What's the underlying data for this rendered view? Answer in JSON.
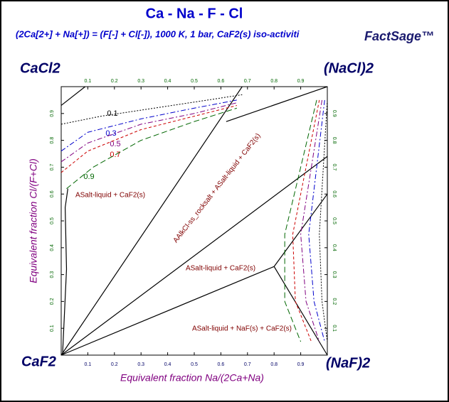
{
  "chart_data": {
    "type": "line",
    "title": "Ca - Na - F - Cl",
    "subtitle": "(2Ca[2+] + Na[+]) = (F[-] + Cl[-]),  1000 K, 1 bar, CaF2(s) iso-activiti",
    "logo": "FactSage™",
    "xlabel": "Equivalent fraction  Na/(2Ca+Na)",
    "ylabel": "Equivalent fraction  Cl/(F+Cl)",
    "corners": [
      "CaCl2",
      "(NaCl)2",
      "CaF2",
      "(NaF)2"
    ],
    "annotations": [
      "ASalt-liquid + CaF2(s)",
      "AAlkCl-ss_rocksalt + ASalt-liquid + CaF2(s)",
      "ASalt-liquid + CaF2(s)",
      "ASalt-liquid + NaF(s) + CaF2(s)"
    ],
    "xlim": [
      0,
      1
    ],
    "ylim": [
      0,
      1
    ],
    "xticks": [
      0.1,
      0.2,
      0.3,
      0.4,
      0.5,
      0.6,
      0.7,
      0.8,
      0.9
    ],
    "yticks": [
      0.1,
      0.2,
      0.3,
      0.4,
      0.5,
      0.6,
      0.7,
      0.8,
      0.9
    ],
    "series": [
      {
        "color": "#000000",
        "dash": "solid",
        "x": [
          0,
          0.68
        ],
        "values": [
          0,
          1
        ]
      },
      {
        "color": "#000000",
        "dash": "solid",
        "x": [
          0,
          0.8,
          1
        ],
        "values": [
          0,
          0.33,
          0
        ]
      },
      {
        "color": "#000000",
        "dash": "solid",
        "x": [
          0,
          1
        ],
        "values": [
          0,
          0.74
        ]
      },
      {
        "color": "#000000",
        "dash": "solid",
        "x": [
          0.8,
          1
        ],
        "values": [
          0.33,
          0.6
        ]
      },
      {
        "color": "#000000",
        "dash": "solid",
        "x": [
          0.005,
          0.02,
          0.015,
          0.025
        ],
        "values": [
          0,
          0.32,
          0.55,
          0.62
        ]
      },
      {
        "color": "#000000",
        "dash": "solid",
        "x": [
          0,
          0.09
        ],
        "values": [
          0.93,
          1
        ]
      },
      {
        "color": "#000000",
        "dash": "solid",
        "x": [
          0.62,
          1
        ],
        "values": [
          0.87,
          1
        ]
      },
      {
        "name": "0.1",
        "color": "#000000",
        "dash": "dotted",
        "x": [
          0,
          0.15,
          0.35,
          0.55,
          0.68,
          null,
          1,
          0.985,
          0.97,
          0.98,
          1
        ],
        "values": [
          0.86,
          0.89,
          0.92,
          0.95,
          0.97,
          null,
          0.95,
          0.7,
          0.45,
          0.2,
          0.05
        ]
      },
      {
        "name": "0.3",
        "color": "#0000cc",
        "dash": "dashdot",
        "x": [
          0,
          0.1,
          0.3,
          0.5,
          0.66,
          null,
          0.99,
          0.96,
          0.93,
          0.95,
          0.99
        ],
        "values": [
          0.76,
          0.83,
          0.88,
          0.92,
          0.95,
          null,
          0.95,
          0.7,
          0.45,
          0.2,
          0.05
        ]
      },
      {
        "name": "0.5",
        "color": "#800080",
        "dash": "dashdot",
        "x": [
          0,
          0.1,
          0.3,
          0.5,
          0.66,
          null,
          0.98,
          0.94,
          0.9,
          0.92,
          0.97
        ],
        "values": [
          0.72,
          0.79,
          0.86,
          0.9,
          0.94,
          null,
          0.95,
          0.7,
          0.45,
          0.2,
          0.05
        ]
      },
      {
        "name": "0.7",
        "color": "#cc0000",
        "dash": "dashed",
        "x": [
          0,
          0.1,
          0.3,
          0.5,
          0.66,
          null,
          0.97,
          0.92,
          0.87,
          0.88,
          0.94
        ],
        "values": [
          0.68,
          0.76,
          0.84,
          0.89,
          0.93,
          null,
          0.95,
          0.7,
          0.45,
          0.2,
          0.05
        ]
      },
      {
        "name": "0.9",
        "color": "#006600",
        "dash": "longdash",
        "x": [
          0.02,
          0.12,
          0.3,
          0.5,
          0.66,
          null,
          0.96,
          0.9,
          0.84,
          0.84,
          0.9
        ],
        "values": [
          0.62,
          0.7,
          0.8,
          0.87,
          0.92,
          null,
          0.95,
          0.7,
          0.45,
          0.2,
          0.05
        ]
      }
    ]
  }
}
